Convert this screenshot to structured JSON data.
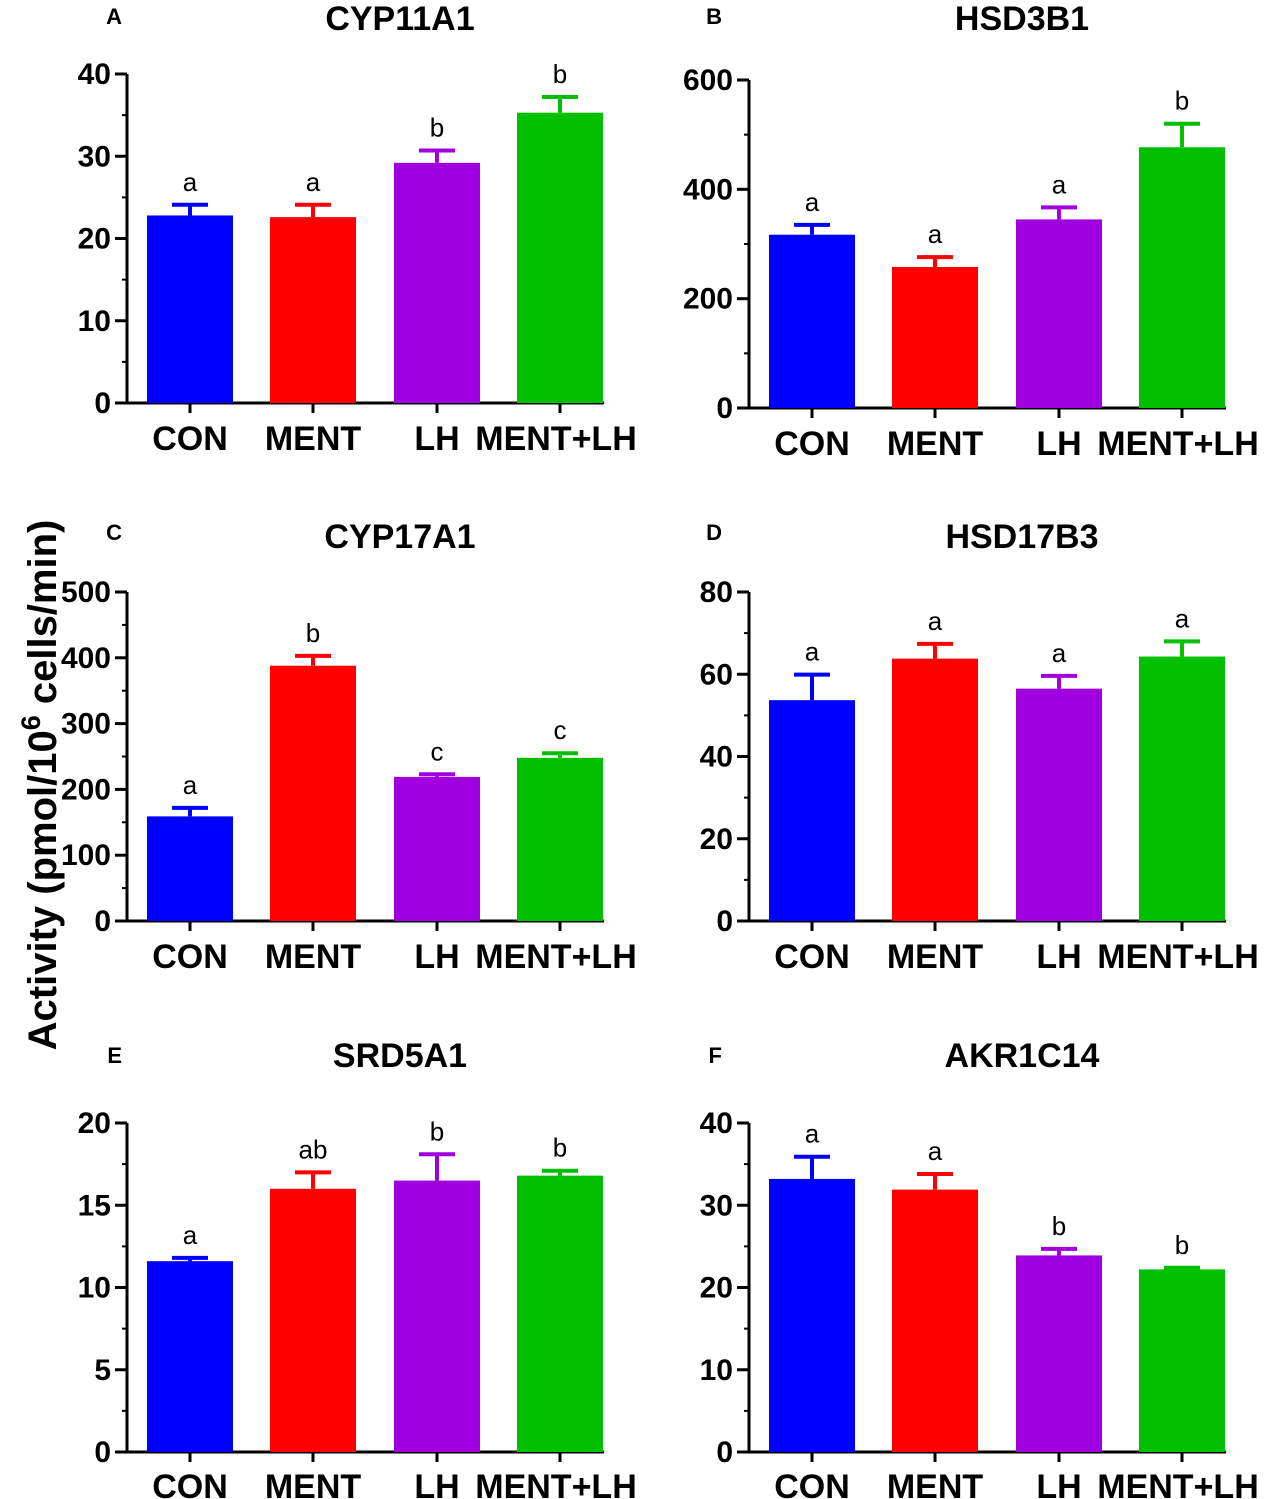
{
  "chart_data": {
    "type": "bar",
    "ylabel_prefix": "Activity  (pmol/10",
    "ylabel_exponent": "6",
    "ylabel_suffix": " cells/min)",
    "categories": [
      "CON",
      "MENT",
      "LH",
      "MENT+LH"
    ],
    "colors": [
      "#0000ff",
      "#ff0000",
      "#a000e0",
      "#00c000"
    ],
    "panels": [
      {
        "letter": "A",
        "title": "CYP11A1",
        "ylim": [
          0,
          40
        ],
        "ticks": [
          0,
          10,
          20,
          30,
          40
        ],
        "minor": 5,
        "values": [
          22.8,
          22.6,
          29.2,
          35.3
        ],
        "errors": [
          1.3,
          1.5,
          1.5,
          1.9
        ],
        "sig": [
          "a",
          "a",
          "b",
          "b"
        ]
      },
      {
        "letter": "B",
        "title": "HSD3B1",
        "ylim": [
          0,
          600
        ],
        "ticks": [
          0,
          200,
          400,
          600
        ],
        "minor": 100,
        "values": [
          317,
          258,
          345,
          477
        ],
        "errors": [
          18,
          18,
          22,
          43
        ],
        "sig": [
          "a",
          "a",
          "a",
          "b"
        ]
      },
      {
        "letter": "C",
        "title": "CYP17A1",
        "ylim": [
          0,
          500
        ],
        "ticks": [
          0,
          100,
          200,
          300,
          400,
          500
        ],
        "minor": 50,
        "values": [
          159,
          388,
          219,
          248
        ],
        "errors": [
          13,
          15,
          4,
          7
        ],
        "sig": [
          "a",
          "b",
          "c",
          "c"
        ]
      },
      {
        "letter": "D",
        "title": "HSD17B3",
        "ylim": [
          0,
          80
        ],
        "ticks": [
          0,
          20,
          40,
          60,
          80
        ],
        "minor": 10,
        "values": [
          53.7,
          63.8,
          56.5,
          64.3
        ],
        "errors": [
          6.2,
          3.6,
          3.1,
          3.7
        ],
        "sig": [
          "a",
          "a",
          "a",
          "a"
        ]
      },
      {
        "letter": "E",
        "title": "SRD5A1",
        "ylim": [
          0,
          20
        ],
        "ticks": [
          0,
          5,
          10,
          15,
          20
        ],
        "minor": 2.5,
        "values": [
          11.6,
          16.0,
          16.5,
          16.8
        ],
        "errors": [
          0.2,
          1.0,
          1.6,
          0.3
        ],
        "sig": [
          "a",
          "ab",
          "b",
          "b"
        ]
      },
      {
        "letter": "F",
        "title": "AKR1C14",
        "ylim": [
          0,
          40
        ],
        "ticks": [
          0,
          10,
          20,
          30,
          40
        ],
        "minor": 5,
        "values": [
          33.2,
          31.9,
          23.9,
          22.2
        ],
        "errors": [
          2.7,
          1.9,
          0.8,
          0.2
        ],
        "sig": [
          "a",
          "a",
          "b",
          "b"
        ]
      }
    ]
  }
}
